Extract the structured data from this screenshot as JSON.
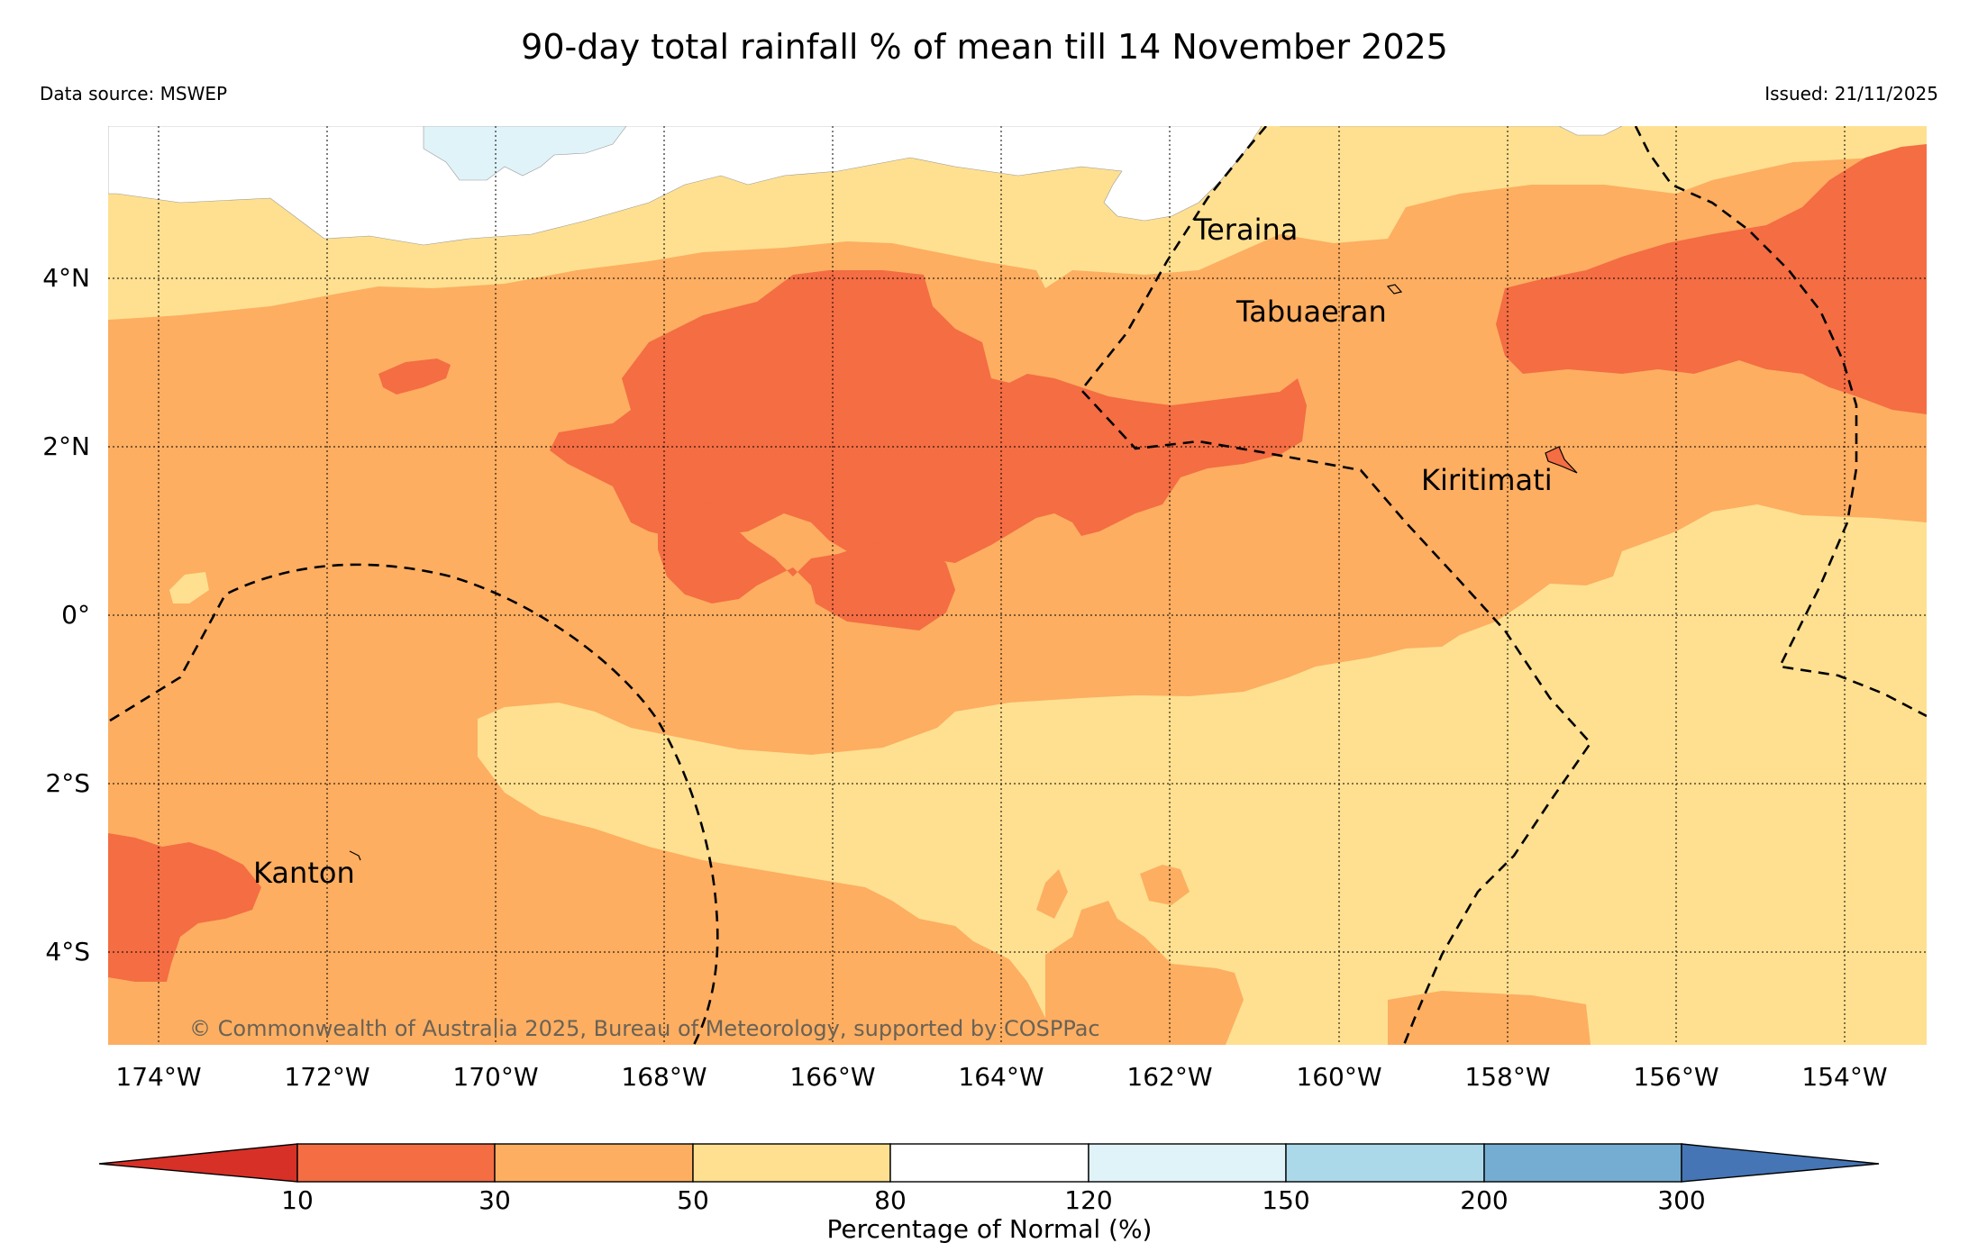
{
  "title": "90-day total rainfall % of mean till 14 November 2025",
  "data_source": "Data source: MSWEP",
  "issued": "Issued: 21/11/2025",
  "copyright": "© Commonwealth of Australia 2025, Bureau of Meteorology, supported by COSPPac",
  "lon_labels": [
    "174°W",
    "172°W",
    "170°W",
    "168°W",
    "166°W",
    "164°W",
    "162°W",
    "160°W",
    "158°W",
    "156°W",
    "154°W"
  ],
  "lat_labels": [
    "4°N",
    "2°N",
    "0°",
    "2°S",
    "4°S"
  ],
  "places": [
    "Teraina",
    "Tabuaeran",
    "Kiritimati",
    "Kanton"
  ],
  "colorbar": {
    "label": "Percentage of Normal (%)",
    "ticks": [
      "10",
      "30",
      "50",
      "80",
      "120",
      "150",
      "200",
      "300"
    ],
    "colors": [
      "#d73027",
      "#f46d43",
      "#fdae61",
      "#fee090",
      "#ffffff",
      "#e0f3f8",
      "#abd9e9",
      "#74add1",
      "#4575b4"
    ]
  },
  "legend_classes": [
    {
      "range": "<10",
      "color": "#d73027"
    },
    {
      "range": "10-30",
      "color": "#f46d43"
    },
    {
      "range": "30-50",
      "color": "#fdae61"
    },
    {
      "range": "50-80",
      "color": "#fee090"
    },
    {
      "range": "80-120",
      "color": "#ffffff"
    },
    {
      "range": "120-150",
      "color": "#e0f3f8"
    },
    {
      "range": "150-200",
      "color": "#abd9e9"
    },
    {
      "range": "200-300",
      "color": "#74add1"
    },
    {
      "range": ">300",
      "color": "#4575b4"
    }
  ]
}
